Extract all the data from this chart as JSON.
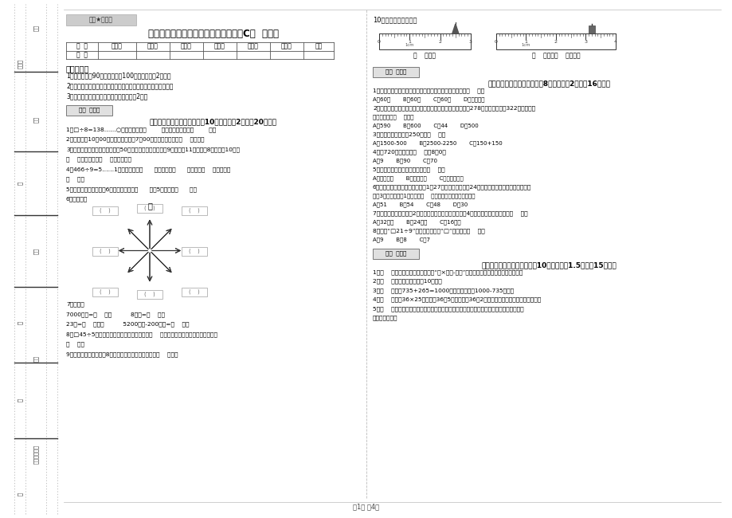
{
  "title": "豫教版三年级数学下学期期中考试试卷C卷  附答案",
  "watermark": "绝密★启用前",
  "table_headers": [
    "题  号",
    "填空题",
    "选择题",
    "判断题",
    "计算题",
    "综合题",
    "应用题",
    "总分"
  ],
  "table_row": [
    "得  分",
    "",
    "",
    "",
    "",
    "",
    "",
    ""
  ],
  "notice_title": "考试须知：",
  "notice_items": [
    "1、考试时间：90分钟，满分为100分（含卷面分2分）。",
    "2、请首先按要求在试卷的指定位置填写您的姓名、班级、学号。",
    "3、不要在试卷上乱写乱画，卷面不整洁占2分。"
  ],
  "section1_header": "一、用心思考，正确填空（共10小题，每题2分，共20分）。",
  "section1_items": [
    "1、□÷8=138……○，余数最大填（        ），这时被除数是（        ）。",
    "2、小林晚上10：00睡觉，第二天早上7：00起床，他一共睡了（    ）小时。",
    "3、体育老师对第一小组同学进行50米跑测试，成绩如下小红9秒，小丽11秒，小明8秒，小冓10秒，\n（    ）跑得最快，（    ）跑得最慢。",
    "4、466÷9=5……1中，被除数是（      ），除数是（      ），商是（    ），余数是\n（    ）。",
    "5、把一根绳子平均分成6份，每份是它的（      ），5份是它的（      ）。",
    "6、填一填。"
  ],
  "compass_label": "北",
  "section1_items2": [
    "7、换算。",
    "7000千克=（    ）吨          8千克=（    ）克",
    "23吨=（    ）千克          5200千克-200千克=（    ）吨",
    "8、□45÷5，要使商是两位数，口里最大可填（    ）；要使商是三位数，口里最小应填\n（    ）。",
    "9、小明从一楼到三楼用8秒，照这样他从一楼到五楼用（    ）秒。"
  ],
  "q10_label": "10、量出钉子的长度。",
  "ruler_text1": "（    ）毫米",
  "ruler_text2": "（    ）厘米（    ）毫米。",
  "section2_header": "二、反复比较，慎重选择（共8小题，每题2分，共16分）。",
  "section2_items": [
    "1、时针从上一个数字到相邻的下一个数字，经过的时间是（    ）。\nA、60秒       B、60分       C、60时       D、无法确定",
    "2、广州新电视塔是广州市目前最高的建筑，它比中信大厦高278米，中信大厦高322米，那么广\n州新电视塔高（    ）米。\nA、590       B、600       C、44       D、500",
    "3、下面的结果刚好是250的是（    ）。\nA、1500-500       B、2500-2250       C、150+150",
    "4、从720里连续减去（    ）个8創0。\nA、9       B、90       C、70",
    "5、下面现象中属于平移现象的是（    ）。\nA、开关抽屉       B、打开瓶盖       C、转动的风车",
    "6、学校开设两个兴趣小组，三（1）27人参加书画小组，24人参加棋艺小组，两个小组都参加\n的有3人，那么三（1）一共有（    ）人参加了书画和棋艺小组。\nA、51       B、54       C、48       D、30",
    "7、一个正方形的边长是2厘米，现在将边长扩大到原来琄4倍，现在正方形的周长是（    ）。\nA、32厘米       B、24厘米       C、16厘米",
    "8、要使“□21÷9”的商是三位数，“□”里只能填（    ）。\nA、9       B、8       C、7"
  ],
  "section3_header": "三、仔细推敲，正确判断（共10小题，每题1.5分，共15分）。",
  "section3_items": [
    "1、（    ）有余数除法的验算方法是“商×除数-余数”，看得到的结果是否与被除数相等。",
    "2、（    ）小明家客厅面积是10公顿。",
    "3、（    ）根据735+265=1000，可以直接写出1000-735的差。",
    "4、（    ）计算36×25时，先把36和5相乘，再把36和2相乘，最后把两次乘得的结果相加。",
    "5、（    ）用同一条铁经先围成一个最大的正方形，再围成一个最大的长方形，长方形和正方\n形的周长相等。"
  ],
  "score_box_label": "得分  评卷人",
  "footer": "第1页 兲4页",
  "bg_color": "#ffffff",
  "text_color": "#000000"
}
